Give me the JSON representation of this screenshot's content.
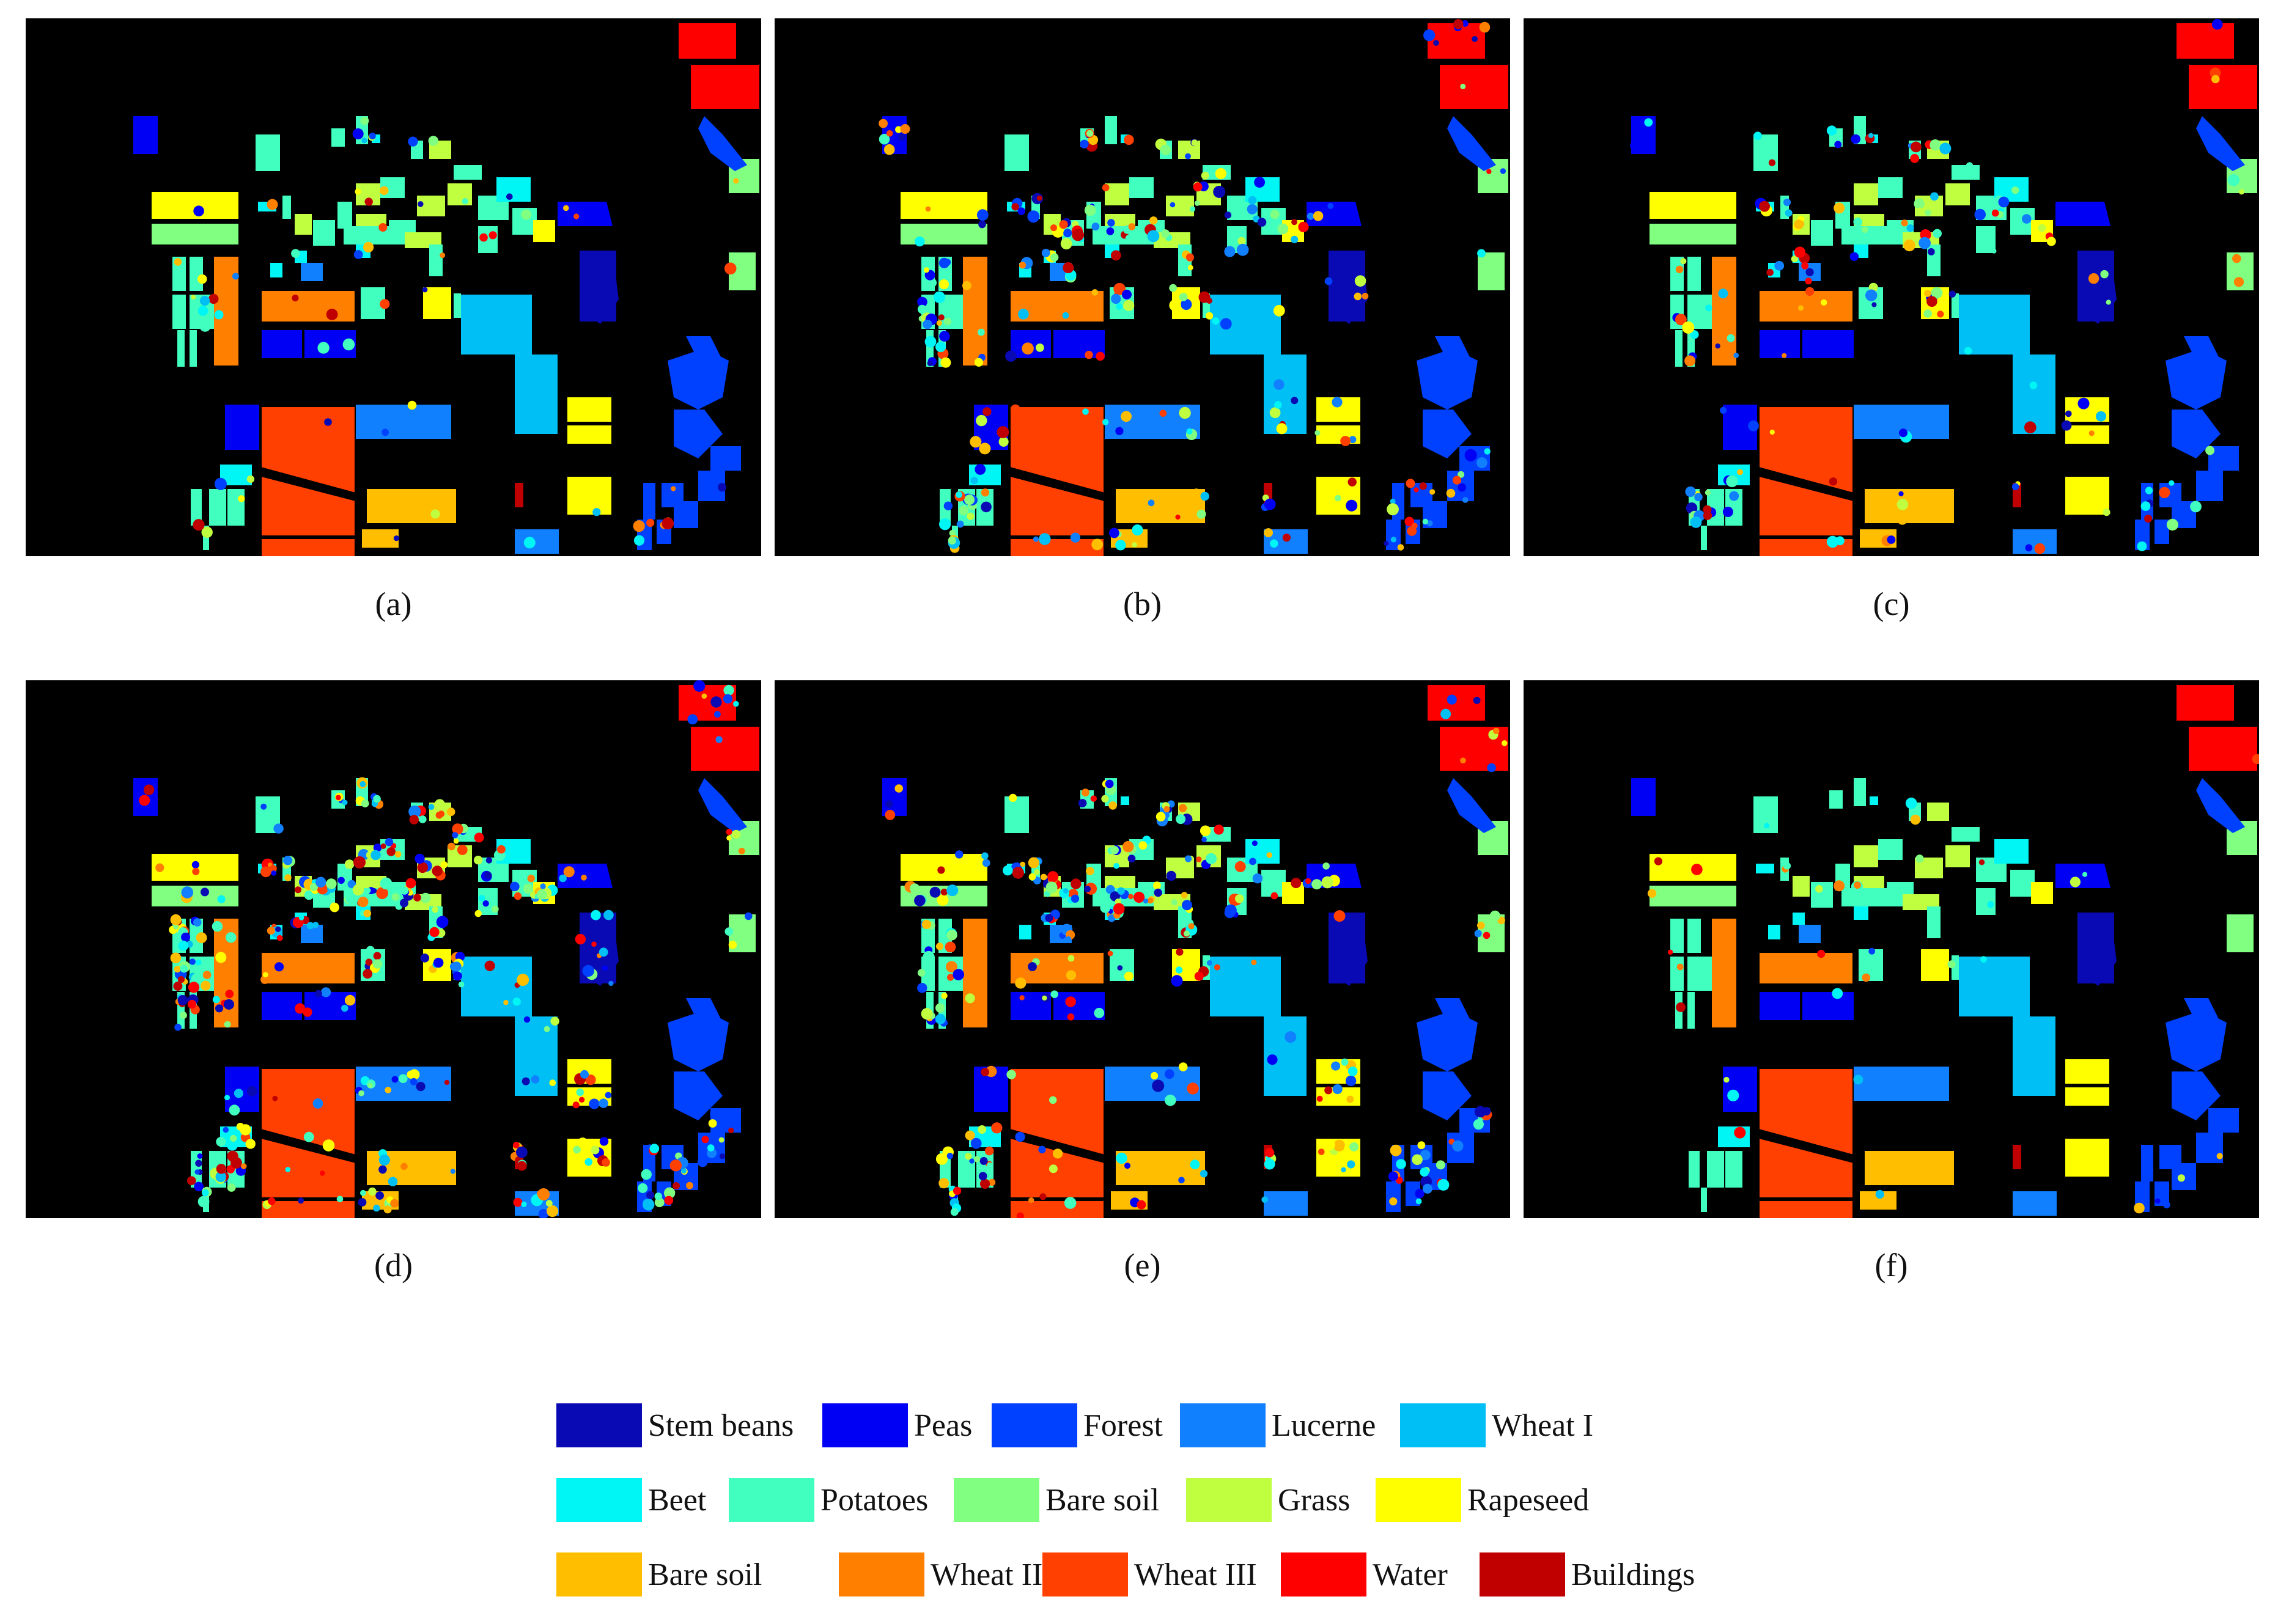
{
  "panels": [
    {
      "label": "(a)",
      "variant": 0
    },
    {
      "label": "(b)",
      "variant": 1
    },
    {
      "label": "(c)",
      "variant": 2
    },
    {
      "label": "(d)",
      "variant": 3
    },
    {
      "label": "(e)",
      "variant": 4
    },
    {
      "label": "(f)",
      "variant": 5
    }
  ],
  "legend": [
    {
      "label": "Stem beans",
      "color": "#0a0ab4"
    },
    {
      "label": "Peas",
      "color": "#0000f5"
    },
    {
      "label": "Forest",
      "color": "#0040ff"
    },
    {
      "label": "Lucerne",
      "color": "#1080ff"
    },
    {
      "label": "Wheat I",
      "color": "#00bff5"
    },
    {
      "label": "Beet",
      "color": "#00f5f5"
    },
    {
      "label": "Potatoes",
      "color": "#40ffbf"
    },
    {
      "label": "Bare soil",
      "color": "#80ff80"
    },
    {
      "label": "Grass",
      "color": "#bfff40"
    },
    {
      "label": "Rapeseed",
      "color": "#ffff00"
    },
    {
      "label": "Bare soil",
      "color": "#ffbf00"
    },
    {
      "label": "Wheat II",
      "color": "#ff8000"
    },
    {
      "label": "Wheat III",
      "color": "#ff4000"
    },
    {
      "label": "Water",
      "color": "#ff0000"
    },
    {
      "label": "Buildings",
      "color": "#c00000"
    }
  ]
}
